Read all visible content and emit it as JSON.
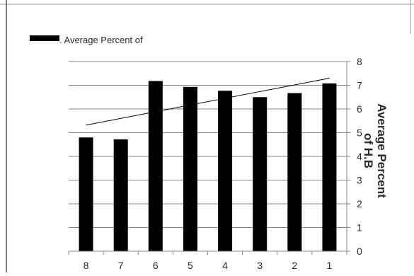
{
  "chart_data": {
    "type": "bar",
    "categories": [
      "8",
      "7",
      "6",
      "5",
      "4",
      "3",
      "2",
      "1"
    ],
    "series": [
      {
        "name": ". Average Percent of",
        "values": [
          4.8,
          4.72,
          7.18,
          6.93,
          6.77,
          6.5,
          6.67,
          7.08
        ]
      }
    ],
    "trendline": {
      "type": "linear",
      "start": 5.32,
      "end": 7.3
    },
    "ylabel": "Average Percent of H.B",
    "ylabel_lines": [
      "Average Percent",
      "of H.B"
    ],
    "ylim": [
      0,
      8
    ],
    "yticks": [
      0,
      1,
      2,
      3,
      4,
      5,
      6,
      7,
      8
    ],
    "y_axis_side": "right",
    "category_order": "reversed",
    "grid": true,
    "legend_position": "top-left",
    "colors": {
      "bar": "#000000",
      "grid": "#868686",
      "trend": "#000000",
      "text": "#2a2a2a"
    }
  }
}
